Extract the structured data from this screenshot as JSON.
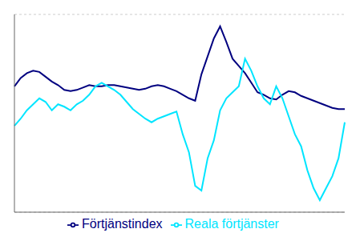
{
  "chart_data": {
    "type": "line",
    "categories": [
      null,
      null,
      null,
      null,
      null,
      null,
      null,
      null,
      null,
      null,
      null,
      null,
      null,
      null,
      null,
      null,
      null,
      null,
      null,
      null,
      null,
      null,
      null,
      null,
      null,
      null,
      null,
      null,
      null,
      null,
      null,
      null,
      null,
      null,
      null,
      null,
      null,
      null,
      null,
      null,
      null,
      null,
      null,
      null,
      null,
      null,
      null,
      null,
      null,
      null,
      null,
      null,
      null,
      null
    ],
    "series": [
      {
        "name": "Förtjänstindex",
        "color": "#000080",
        "values": [
          3.5,
          4.2,
          4.6,
          4.8,
          4.7,
          4.3,
          3.9,
          3.6,
          3.2,
          3.1,
          3.2,
          3.4,
          3.6,
          3.5,
          3.5,
          3.6,
          3.6,
          3.5,
          3.4,
          3.3,
          3.2,
          3.3,
          3.5,
          3.6,
          3.5,
          3.3,
          3.1,
          2.8,
          2.5,
          2.3,
          4.5,
          6.0,
          7.5,
          8.5,
          7.2,
          5.8,
          5.2,
          4.6,
          3.8,
          3.0,
          2.8,
          2.5,
          2.4,
          2.8,
          3.1,
          3.0,
          2.7,
          2.5,
          2.3,
          2.1,
          1.9,
          1.7,
          1.6,
          1.6
        ]
      },
      {
        "name": "Reala förtjänster",
        "color": "#00E5FF",
        "values": [
          0.2,
          0.8,
          1.5,
          2.0,
          2.5,
          2.2,
          1.5,
          2.0,
          1.8,
          1.5,
          2.0,
          2.3,
          2.8,
          3.5,
          3.8,
          3.5,
          3.2,
          2.8,
          2.2,
          1.6,
          1.2,
          0.8,
          0.5,
          0.8,
          1.0,
          1.2,
          1.4,
          -0.5,
          -2.0,
          -4.8,
          -5.2,
          -2.5,
          -1.0,
          1.5,
          2.5,
          3.0,
          3.5,
          5.8,
          4.8,
          3.5,
          2.5,
          2.0,
          3.5,
          2.5,
          1.0,
          -0.5,
          -1.5,
          -3.5,
          -5.0,
          -6.0,
          -5.0,
          -4.0,
          -2.5,
          0.5
        ]
      }
    ],
    "ylim": [
      -7,
      9.5
    ],
    "yticks": [
      -4,
      -2,
      0,
      2,
      4,
      6,
      8
    ],
    "grid": true,
    "legend": "bottom",
    "tick_labels": false
  }
}
